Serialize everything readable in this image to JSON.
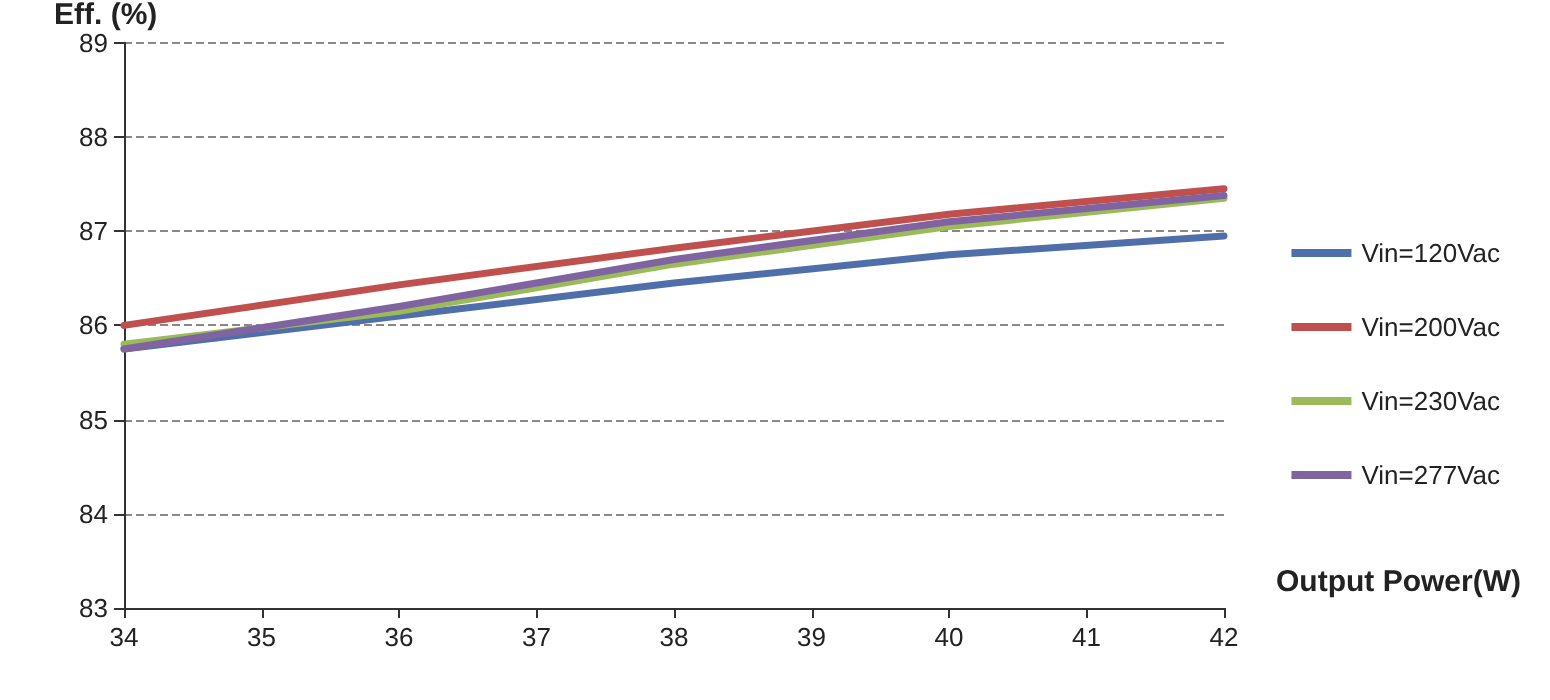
{
  "chart_data": {
    "type": "line",
    "ylabel": "Eff. (%)",
    "xlabel": "Output Power(W)",
    "x": [
      34,
      36,
      38,
      40,
      42
    ],
    "series": [
      {
        "name": "Vin=120Vac",
        "color": "#4f6fab",
        "values": [
          85.75,
          86.1,
          86.45,
          86.75,
          86.95
        ]
      },
      {
        "name": "Vin=200Vac",
        "color": "#c0504d",
        "values": [
          86.0,
          86.43,
          86.82,
          87.18,
          87.45
        ]
      },
      {
        "name": "Vin=230Vac",
        "color": "#9bbb59",
        "values": [
          85.8,
          86.15,
          86.65,
          87.05,
          87.35
        ]
      },
      {
        "name": "Vin=277Vac",
        "color": "#8064a2",
        "values": [
          85.75,
          86.2,
          86.7,
          87.1,
          87.38
        ]
      }
    ],
    "xlim": [
      34,
      42
    ],
    "xticks": [
      34,
      35,
      36,
      37,
      38,
      39,
      40,
      41,
      42
    ],
    "ylim": [
      83,
      89
    ],
    "yticks": [
      83,
      84,
      85,
      86,
      87,
      88,
      89
    ],
    "grid": "y",
    "legend": "right",
    "marker": "none",
    "line_style": "solid"
  }
}
